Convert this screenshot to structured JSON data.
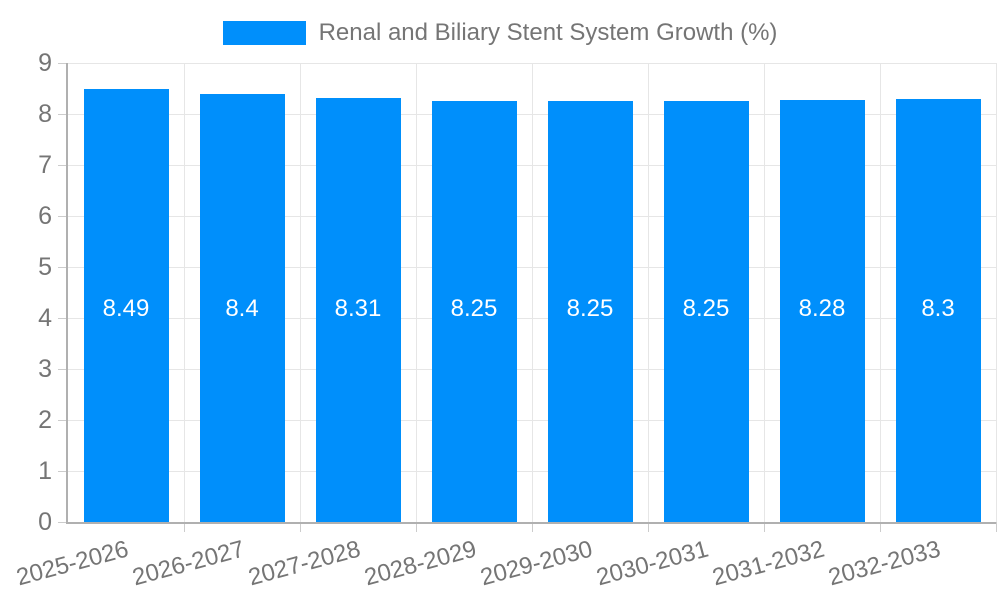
{
  "chart_data": {
    "type": "bar",
    "title": "Renal and Biliary Stent System Growth (%)",
    "categories": [
      "2025-2026",
      "2026-2027",
      "2027-2028",
      "2028-2029",
      "2029-2030",
      "2030-2031",
      "2031-2032",
      "2032-2033"
    ],
    "values": [
      8.49,
      8.4,
      8.31,
      8.25,
      8.25,
      8.25,
      8.28,
      8.3
    ],
    "value_labels": [
      "8.49",
      "8.4",
      "8.31",
      "8.25",
      "8.25",
      "8.25",
      "8.28",
      "8.3"
    ],
    "xlabel": "",
    "ylabel": "",
    "ylim": [
      0,
      9
    ],
    "yticks": [
      0,
      1,
      2,
      3,
      4,
      5,
      6,
      7,
      8,
      9
    ],
    "grid": true,
    "legend_position": "top",
    "bar_color": "#008FFB",
    "value_label_color": "#FFFFFF",
    "axis_text_color": "#757575",
    "gridline_color": "#E6E6E6",
    "axis_line_color": "#B0B0B0"
  }
}
